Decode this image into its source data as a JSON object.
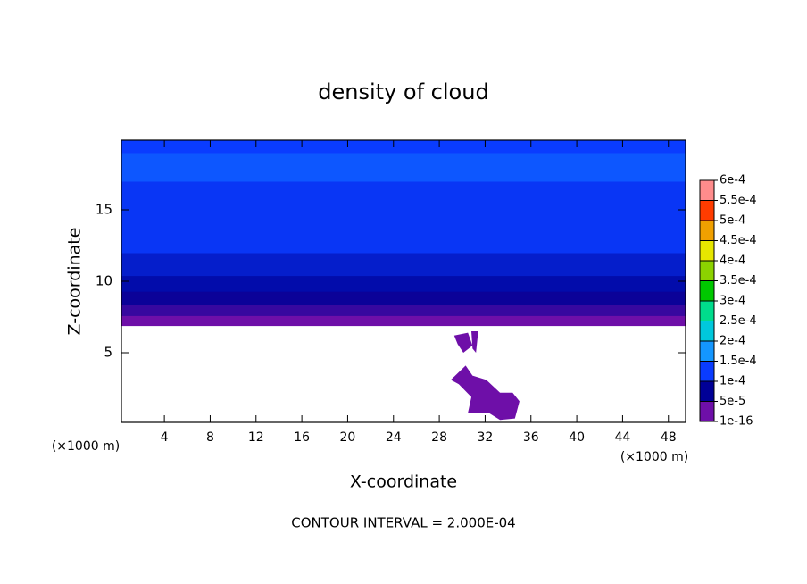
{
  "chart_data": {
    "type": "contour",
    "title": "density of cloud",
    "x_label": "X-coordinate",
    "y_label": "Z-coordinate",
    "x_unit": "(×1000 m)",
    "y_unit": "(×1000 m)",
    "annotation": "CONTOUR INTERVAL = 2.000E-04",
    "xlim": [
      0.25,
      49.5
    ],
    "ylim": [
      0.125,
      19.875
    ],
    "xticks": [
      4,
      8,
      12,
      16,
      20,
      24,
      28,
      32,
      36,
      40,
      44,
      48
    ],
    "yticks": [
      5,
      10,
      15
    ],
    "colorbar": {
      "levels": [
        {
          "value": 1e-16,
          "label": "1e-16"
        },
        {
          "value": 5e-05,
          "label": "5e-5"
        },
        {
          "value": 0.0001,
          "label": "1e-4"
        },
        {
          "value": 0.00015,
          "label": "1.5e-4"
        },
        {
          "value": 0.0002,
          "label": "2e-4"
        },
        {
          "value": 0.00025,
          "label": "2.5e-4"
        },
        {
          "value": 0.0003,
          "label": "3e-4"
        },
        {
          "value": 0.00035,
          "label": "3.5e-4"
        },
        {
          "value": 0.0004,
          "label": "4e-4"
        },
        {
          "value": 0.00045,
          "label": "4.5e-4"
        },
        {
          "value": 0.0005,
          "label": "5e-4"
        },
        {
          "value": 0.00055,
          "label": "5.5e-4"
        },
        {
          "value": 0.0006,
          "label": "6e-4"
        }
      ],
      "colors": [
        "#6e0fa8",
        "#000096",
        "#0a3cff",
        "#1496ff",
        "#00c8dc",
        "#00dc8c",
        "#00c800",
        "#8cd200",
        "#e6e600",
        "#f0a000",
        "#ff3c00",
        "#ff8c8c"
      ]
    },
    "layers": [
      {
        "z": [
          6.9,
          7.6
        ],
        "value": 2e-05
      },
      {
        "z": [
          7.6,
          8.4
        ],
        "value": 5e-05
      },
      {
        "z": [
          8.4,
          9.3
        ],
        "value": 7e-05
      },
      {
        "z": [
          9.3,
          10.4
        ],
        "value": 8.5e-05
      },
      {
        "z": [
          10.4,
          12.0
        ],
        "value": 0.0001
      },
      {
        "z": [
          12.0,
          17.0
        ],
        "value": 0.00012
      },
      {
        "z": [
          17.0,
          19.0
        ],
        "value": 0.00014
      },
      {
        "z": [
          19.0,
          19.875
        ],
        "value": 0.000125
      }
    ],
    "patches": [
      {
        "value": 2e-05,
        "x": [
          30.3,
          30.9,
          32.1,
          33.3,
          34.4,
          35.0,
          34.6,
          33.3,
          32.3,
          30.5,
          30.8,
          29.7,
          29.0
        ],
        "y": [
          4.1,
          3.4,
          3.1,
          2.2,
          2.2,
          1.6,
          0.4,
          0.3,
          0.8,
          0.8,
          1.9,
          2.8,
          3.1
        ]
      },
      {
        "value": 2e-05,
        "x": [
          29.3,
          30.5,
          30.9,
          30.1,
          29.6
        ],
        "y": [
          6.2,
          6.4,
          5.5,
          5.0,
          5.6
        ]
      },
      {
        "value": 2e-05,
        "x": [
          30.8,
          31.4,
          31.2,
          30.9
        ],
        "y": [
          6.5,
          6.5,
          5.0,
          5.3
        ]
      }
    ]
  }
}
